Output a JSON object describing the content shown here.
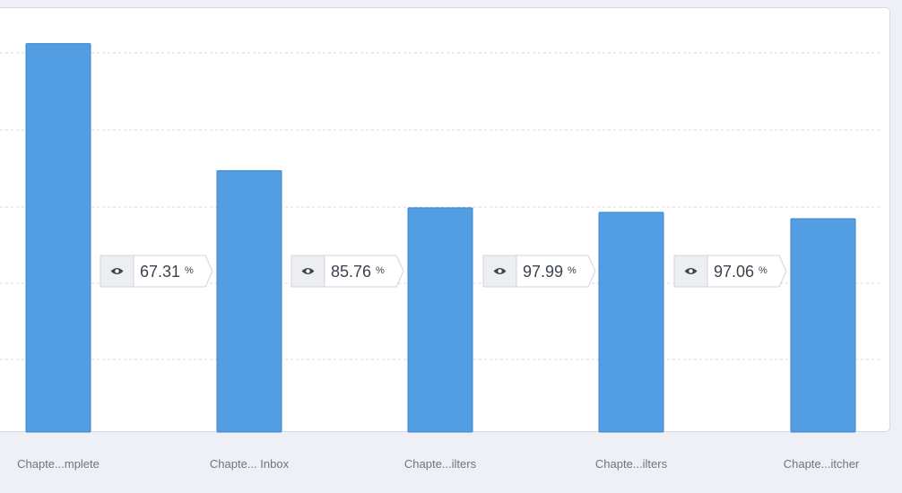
{
  "chart_data": {
    "type": "bar",
    "categories": [
      "Chapte...mplete",
      "Chapte... Inbox",
      "Chapte...ilters",
      "Chapte...ilters",
      "Chapte...itcher"
    ],
    "values": [
      100,
      67.31,
      57.73,
      56.57,
      54.91
    ],
    "ylim": [
      0,
      102
    ],
    "grid": true,
    "conversion_rates": [
      {
        "value": "67.31",
        "unit": "%",
        "icon": "eye-icon"
      },
      {
        "value": "85.76",
        "unit": "%",
        "icon": "eye-icon"
      },
      {
        "value": "97.99",
        "unit": "%",
        "icon": "eye-icon"
      },
      {
        "value": "97.06",
        "unit": "%",
        "icon": "eye-icon"
      }
    ],
    "colors": {
      "bar": "#539ee2",
      "bar_border": "#3f85cc",
      "grid": "#d6d9e0",
      "badge_bg": "#ffffff",
      "badge_icon_bg": "#eceef2"
    }
  }
}
